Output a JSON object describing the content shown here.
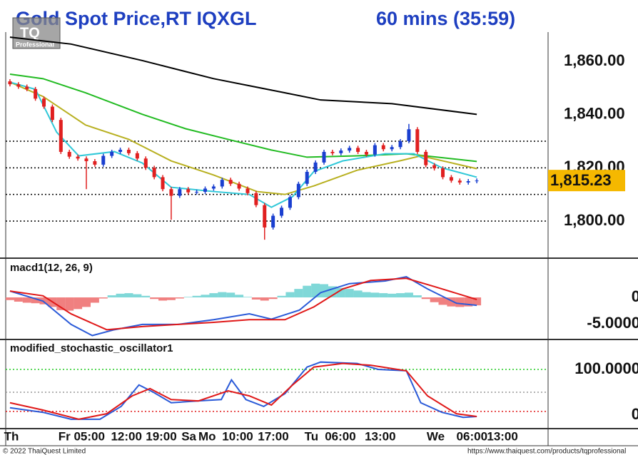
{
  "header": {
    "title": "Gold Spot Price,RT IQXGL",
    "interval": "60 mins (35:59)",
    "logo": "TQ",
    "logo_sub": "Professional"
  },
  "chart_data": [
    {
      "type": "candlestick",
      "xlim": [
        -0.5,
        63.4
      ],
      "ylim": [
        1786.6,
        1870.2
      ],
      "yticks": [
        {
          "value": 1800,
          "label": "1,800.00"
        },
        {
          "value": 1820,
          "label": "1,820.00"
        },
        {
          "value": 1840,
          "label": "1,840.00"
        },
        {
          "value": 1860,
          "label": "1,860.00"
        }
      ],
      "gridlines": [
        1800,
        1810,
        1820,
        1830
      ],
      "up_color": "#1a3fd0",
      "down_color": "#e02020",
      "open": [
        1852.5,
        1851.4,
        1850.5,
        1849.6,
        1846,
        1843,
        1838,
        1826,
        1824.2,
        1823.5,
        1822.5,
        1821.2,
        1824.5,
        1826,
        1826.8,
        1825.5,
        1823.5,
        1820,
        1816.5,
        1812,
        1809.5,
        1812,
        1810.8,
        1811,
        1812.2,
        1813,
        1815.5,
        1814,
        1812.2,
        1810.5,
        1806,
        1797.6,
        1802,
        1805,
        1809,
        1814,
        1818.5,
        1822,
        1826,
        1825.5,
        1826.5,
        1827.5,
        1826,
        1825,
        1828.5,
        1827,
        1827.8,
        1830,
        1834.5,
        1826,
        1821,
        1819.8,
        1816.5,
        1815.2,
        1814.5,
        1815
      ],
      "high": [
        1853.3,
        1852.2,
        1851.3,
        1850.4,
        1846.8,
        1843.8,
        1838.8,
        1826.8,
        1825,
        1824.3,
        1823.3,
        1825.3,
        1826.8,
        1827.6,
        1827.6,
        1826.3,
        1824.3,
        1820.8,
        1817.3,
        1812.8,
        1812.8,
        1812.8,
        1811.8,
        1813,
        1813.8,
        1816.3,
        1816.3,
        1814.8,
        1813,
        1811.3,
        1806.8,
        1802.8,
        1805.8,
        1809.8,
        1814.8,
        1819.3,
        1822.8,
        1826.8,
        1826.8,
        1827.3,
        1828.3,
        1828.3,
        1826.8,
        1829.3,
        1829.3,
        1828.6,
        1830.8,
        1836.5,
        1835.3,
        1826.8,
        1821.8,
        1820.6,
        1817.3,
        1816,
        1815.8,
        1816
      ],
      "low": [
        1850.6,
        1849.7,
        1848.8,
        1845.2,
        1842.2,
        1837.2,
        1825.2,
        1823.4,
        1822.7,
        1812,
        1820.4,
        1820.4,
        1823.7,
        1825.2,
        1824.7,
        1822.7,
        1819.2,
        1815.7,
        1811.2,
        1800.5,
        1808.7,
        1810,
        1810,
        1810.2,
        1811.4,
        1812.2,
        1813.2,
        1811.4,
        1809.7,
        1805.2,
        1793,
        1796.8,
        1801.2,
        1804.2,
        1808.2,
        1813.2,
        1817.7,
        1821.2,
        1824.7,
        1824.7,
        1825.7,
        1825.2,
        1824.2,
        1824.2,
        1826.2,
        1826.2,
        1827,
        1829.2,
        1825.2,
        1820.2,
        1819,
        1815.7,
        1814.4,
        1813.7,
        1813.7,
        1814.2
      ],
      "close": [
        1851.4,
        1850.5,
        1849.6,
        1846,
        1843,
        1838,
        1826,
        1824.2,
        1823.5,
        1822.5,
        1821.2,
        1824.5,
        1826,
        1826.8,
        1825.5,
        1823.5,
        1820,
        1816.5,
        1812,
        1809.5,
        1812,
        1810.8,
        1811,
        1812.2,
        1813,
        1815.5,
        1814,
        1812.2,
        1810.5,
        1806,
        1797.6,
        1802,
        1805,
        1809,
        1814,
        1818.5,
        1822,
        1826,
        1825.5,
        1826.5,
        1827.5,
        1826,
        1825,
        1828.5,
        1827,
        1827.8,
        1830,
        1834.5,
        1826,
        1821,
        1819.8,
        1816.5,
        1815.2,
        1814.5,
        1815,
        1815.23
      ],
      "lines": [
        {
          "color": "#000000",
          "x": [
            0,
            7.2,
            15.6,
            24,
            32.4,
            36.6,
            45,
            55
          ],
          "values": [
            1869.1,
            1866.5,
            1860.3,
            1853.5,
            1848.2,
            1845.5,
            1844.1,
            1840.1
          ]
        },
        {
          "color": "#22bb22",
          "x": [
            0,
            3.9,
            8.9,
            15.6,
            20.7,
            25.7,
            30.8,
            35,
            40.9,
            46.7,
            55
          ],
          "values": [
            1855.2,
            1853.5,
            1848.2,
            1840.1,
            1834.7,
            1830.7,
            1826.7,
            1824,
            1824.5,
            1825.3,
            1822.4
          ]
        },
        {
          "color": "#b8b020",
          "x": [
            0,
            3.9,
            8.9,
            14,
            19,
            24,
            29.1,
            32.4,
            35.8,
            40.9,
            45.9,
            48.4,
            55
          ],
          "values": [
            1852.2,
            1846.8,
            1836.1,
            1830.7,
            1822.6,
            1817.3,
            1811.1,
            1810,
            1813.2,
            1819.1,
            1822.6,
            1824.5,
            1819.7
          ]
        },
        {
          "color": "#30c8d8",
          "x": [
            0,
            3,
            5.5,
            8.1,
            12.3,
            15.6,
            19,
            24,
            28.2,
            30.8,
            33.3,
            35.8,
            39.2,
            44.2,
            47.6,
            50.9,
            55
          ],
          "values": [
            1852.2,
            1849.5,
            1833.4,
            1824.5,
            1826.1,
            1821.8,
            1812.7,
            1811.1,
            1810,
            1805.2,
            1809.2,
            1818.6,
            1822.6,
            1825.3,
            1825.3,
            1820,
            1816.5
          ]
        }
      ],
      "last": {
        "value": 1815.23,
        "label": "1,815.23"
      },
      "last_color": "#f5b800"
    },
    {
      "type": "macd",
      "label": "macd1(12, 26, 9)",
      "xlim": [
        -0.5,
        63.4
      ],
      "ylim": [
        -7.4,
        6.6
      ],
      "yticks": [
        {
          "value": -5,
          "label": "-5.0000"
        },
        0
      ],
      "pos_color": "#80d8d8",
      "neg_color": "#f08080",
      "histogram": [
        -0.5,
        -0.8,
        -1,
        -1.1,
        -1.3,
        -1.8,
        -2.4,
        -2.5,
        -2.2,
        -1.8,
        -1.0,
        -0.2,
        0.4,
        0.7,
        0.8,
        0.6,
        0.3,
        -0.3,
        -0.6,
        -0.5,
        -0.2,
        0.1,
        0.3,
        0.5,
        0.8,
        1.0,
        0.9,
        0.5,
        0.1,
        -0.4,
        -0.6,
        -0.3,
        0.3,
        1.0,
        1.6,
        2.2,
        2.6,
        2.5,
        2.1,
        1.8,
        1.6,
        1.3,
        1.0,
        0.9,
        0.8,
        0.7,
        0.8,
        0.9,
        0.4,
        -0.3,
        -0.9,
        -1.4,
        -1.7,
        -1.8,
        -1.7,
        -1.5
      ],
      "lines": [
        {
          "color": "#2a5ad8",
          "x": [
            0,
            3.9,
            7.2,
            9.7,
            12.3,
            15.6,
            19.8,
            24,
            28.2,
            30.8,
            34.1,
            36.6,
            40,
            44.2,
            46.7,
            49.2,
            52.6,
            55
          ],
          "values": [
            1.2,
            -0.7,
            -5.1,
            -7.2,
            -6.1,
            -5.1,
            -5.1,
            -4.2,
            -3.1,
            -4.1,
            -2.4,
            0.9,
            2.6,
            3.1,
            3.9,
            1.6,
            -1.1,
            -1.5
          ]
        },
        {
          "color": "#e01818",
          "x": [
            0,
            3.9,
            7.2,
            11.4,
            15.6,
            19.8,
            24,
            28.2,
            32.4,
            35.8,
            39.2,
            42.5,
            46.7,
            50.1,
            55
          ],
          "values": [
            1.2,
            0.3,
            -3.1,
            -6.1,
            -5.5,
            -5.1,
            -4.7,
            -4.2,
            -4.2,
            -1.8,
            1.6,
            3.2,
            3.6,
            2,
            -0.4
          ]
        }
      ]
    },
    {
      "type": "stochastic",
      "label": "modified_stochastic_oscillator1",
      "xlim": [
        -0.5,
        63.4
      ],
      "ylim": [
        -28,
        128
      ],
      "yticks": [
        0,
        {
          "value": 100,
          "label": "100.0000"
        }
      ],
      "levels": [
        {
          "value": 100,
          "color": "#22cc22"
        },
        {
          "value": 50,
          "color": "#999999"
        },
        {
          "value": 8,
          "color": "#e01818"
        }
      ],
      "xticks": [
        {
          "value": -0.7,
          "label": "Th"
        },
        {
          "value": 5.7,
          "label": "Fr 05:00"
        },
        {
          "value": 11.9,
          "label": "12:00"
        },
        {
          "value": 16,
          "label": "19:00"
        },
        {
          "value": 20.2,
          "label": "Sa"
        },
        {
          "value": 22.2,
          "label": "Mo"
        },
        {
          "value": 25,
          "label": "10:00"
        },
        {
          "value": 29.2,
          "label": "17:00"
        },
        {
          "value": 34.7,
          "label": "Tu"
        },
        {
          "value": 37.1,
          "label": "06:00"
        },
        {
          "value": 41.8,
          "label": "13:00"
        },
        {
          "value": 49.1,
          "label": "We"
        },
        {
          "value": 52.6,
          "label": "06:00"
        },
        {
          "value": 56.2,
          "label": "13:00"
        }
      ],
      "lines": [
        {
          "color": "#2a5ad8",
          "x": [
            0,
            3.9,
            7.2,
            10.6,
            13.1,
            15.2,
            16.9,
            19,
            22.2,
            24.9,
            26.1,
            27.8,
            29.9,
            32.4,
            35,
            36.6,
            40.9,
            43.4,
            46.7,
            48.4,
            50.9,
            53.4,
            55
          ],
          "values": [
            16,
            6,
            -9,
            -9,
            19,
            66,
            50,
            27,
            31,
            34,
            77,
            34,
            19,
            47,
            105,
            116,
            113,
            100,
            97,
            27,
            6,
            -5,
            -3
          ]
        },
        {
          "color": "#e01818",
          "x": [
            0,
            3.9,
            8.1,
            11.4,
            14.4,
            16.5,
            19,
            22.2,
            25.7,
            28.2,
            30.8,
            33.3,
            35.8,
            39.2,
            42.5,
            46.7,
            49.2,
            52.6,
            55
          ],
          "values": [
            27,
            11,
            -9,
            3,
            42,
            58,
            34,
            31,
            53,
            42,
            22,
            66,
            105,
            113,
            109,
            97,
            42,
            3,
            -3
          ]
        }
      ]
    }
  ],
  "footer": {
    "left": "© 2022 ThaiQuest Limited",
    "right": "https://www.thaiquest.com/products/tqprofessional"
  }
}
